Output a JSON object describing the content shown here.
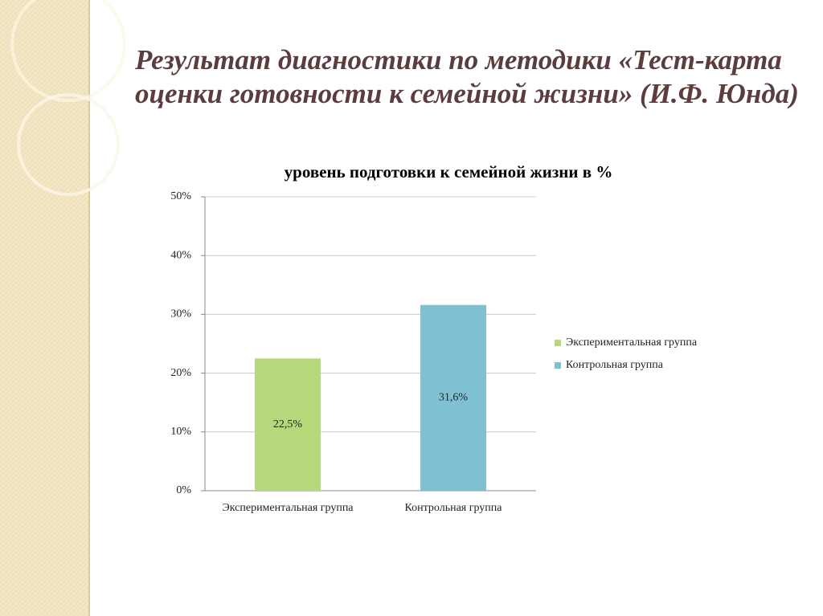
{
  "slide": {
    "title_lines": [
      "Результат диагностики по методики «Тест-карта",
      "оценки готовности к семейной жизни» (И.Ф. Юнда)"
    ]
  },
  "chart_data": {
    "type": "bar",
    "title": "уровень подготовки к семейной жизни в %",
    "categories": [
      "Экспериментальная группа",
      "Контрольная группа"
    ],
    "values": [
      22.5,
      31.6
    ],
    "value_labels": [
      "22,5%",
      "31,6%"
    ],
    "colors": [
      "#b6d77a",
      "#7fc1d3"
    ],
    "ylim": [
      0,
      50
    ],
    "yticks": [
      {
        "value": 0,
        "label": "0%"
      },
      {
        "value": 10,
        "label": "10%"
      },
      {
        "value": 20,
        "label": "20%"
      },
      {
        "value": 30,
        "label": "30%"
      },
      {
        "value": 40,
        "label": "40%"
      },
      {
        "value": 50,
        "label": "50%"
      }
    ],
    "grid": true,
    "legend": "right"
  }
}
